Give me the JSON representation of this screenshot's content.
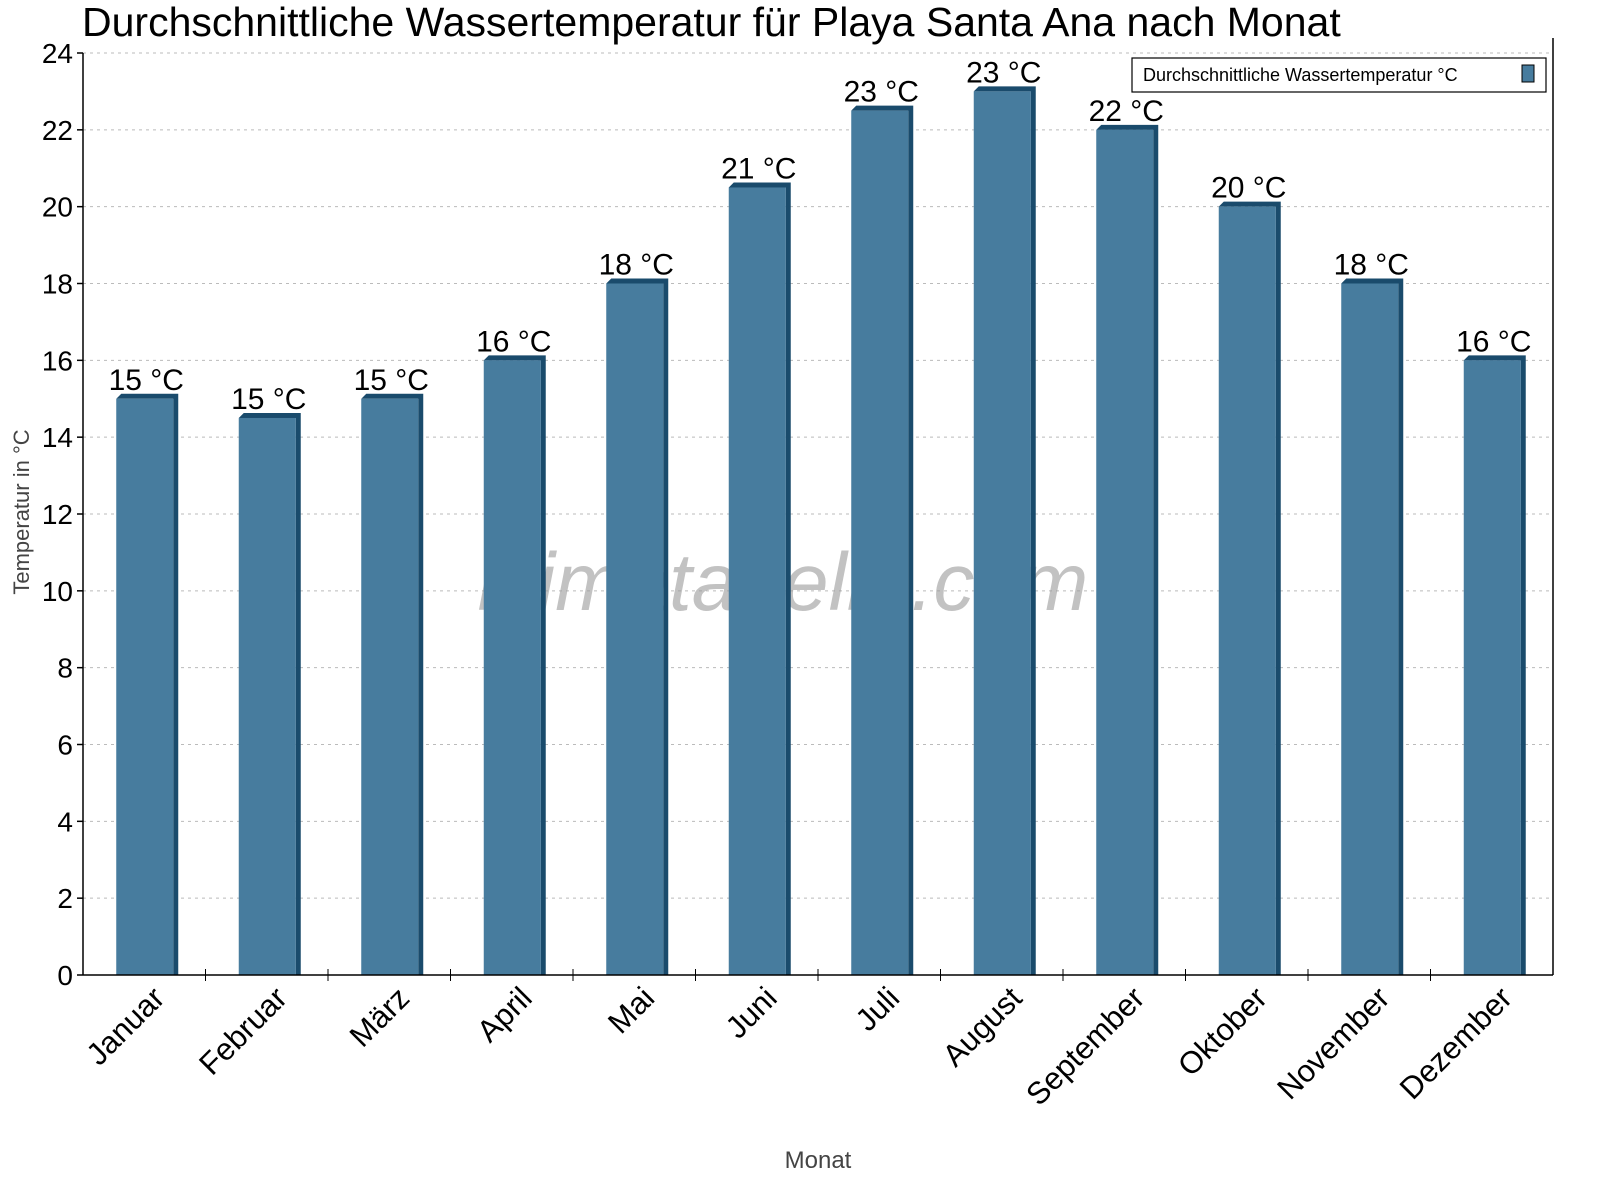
{
  "chart_data": {
    "type": "bar",
    "title": "Durchschnittliche Wassertemperatur für Playa Santa Ana nach Monat",
    "xlabel": "Monat",
    "ylabel": "Temperatur in °C",
    "ylim": [
      0,
      24
    ],
    "yticks": [
      "0",
      "2",
      "4",
      "6",
      "8",
      "10",
      "12",
      "14",
      "16",
      "18",
      "20",
      "22",
      "24"
    ],
    "grid": true,
    "legend_position": "top-right",
    "categories": [
      "Januar",
      "Februar",
      "März",
      "April",
      "Mai",
      "Juni",
      "Juli",
      "August",
      "September",
      "Oktober",
      "November",
      "Dezember"
    ],
    "series": [
      {
        "name": "Durchschnittliche Wassertemperatur °C",
        "values": [
          15,
          14.5,
          15,
          16,
          18,
          20.5,
          22.5,
          23,
          22,
          20,
          18,
          16
        ],
        "data_labels": [
          "15 °C",
          "15 °C",
          "15 °C",
          "16 °C",
          "18 °C",
          "21 °C",
          "23 °C",
          "23 °C",
          "22 °C",
          "20 °C",
          "18 °C",
          "16 °C"
        ],
        "color": "#477c9e",
        "edge_color": "#1a4b6c"
      }
    ],
    "watermark": "klimatabelle.com"
  }
}
